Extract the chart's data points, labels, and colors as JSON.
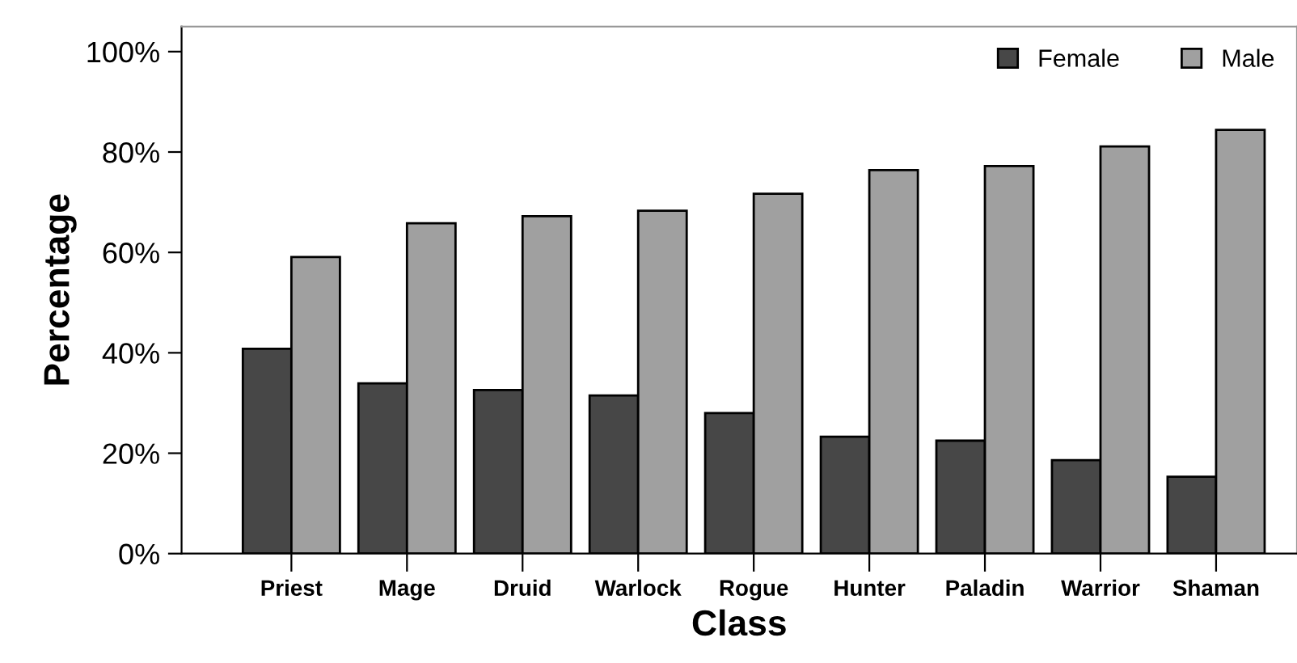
{
  "chart_data": {
    "type": "bar",
    "xlabel": "Class",
    "ylabel": "Percentage",
    "categories": [
      "Priest",
      "Mage",
      "Druid",
      "Warlock",
      "Rogue",
      "Hunter",
      "Paladin",
      "Warrior",
      "Shaman"
    ],
    "series": [
      {
        "name": "Female",
        "color": "#474747",
        "values": [
          40.8,
          33.9,
          32.6,
          31.5,
          28.0,
          23.3,
          22.5,
          18.6,
          15.3
        ]
      },
      {
        "name": "Male",
        "color": "#a0a0a0",
        "values": [
          59.1,
          65.8,
          67.2,
          68.3,
          71.7,
          76.4,
          77.2,
          81.1,
          84.4
        ]
      }
    ],
    "ylim": [
      0,
      105
    ],
    "yticks": [
      {
        "value": 0,
        "label": "0%"
      },
      {
        "value": 20,
        "label": "20%"
      },
      {
        "value": 40,
        "label": "40%"
      },
      {
        "value": 60,
        "label": "60%"
      },
      {
        "value": 80,
        "label": "80%"
      },
      {
        "value": 100,
        "label": "100%"
      }
    ],
    "grid": false,
    "legend": "top right"
  }
}
